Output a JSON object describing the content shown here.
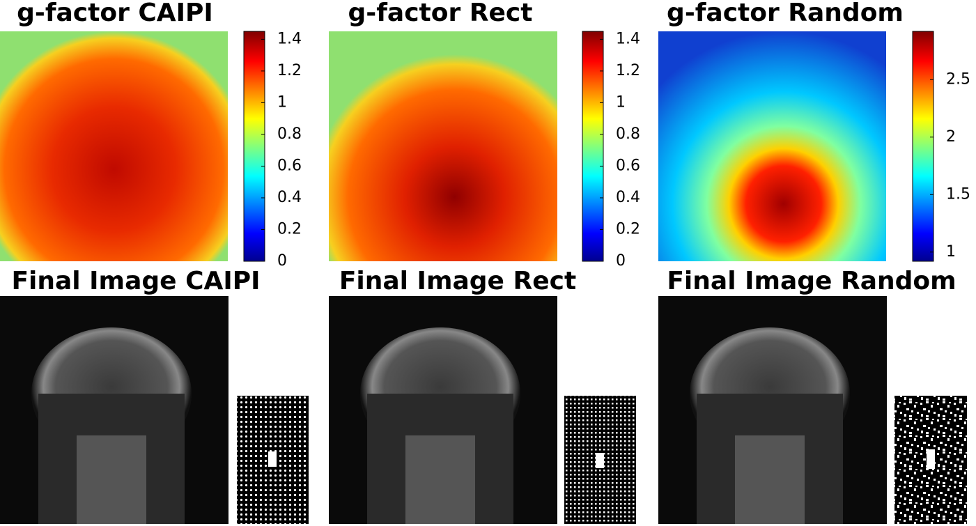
{
  "panels": [
    {
      "title": "g-factor CAIPI",
      "image_title": "Final Image CAIPI",
      "colorbar": {
        "lim": [
          0,
          1.45
        ],
        "ticks": [
          0,
          0.2,
          0.4,
          0.6,
          0.8,
          1,
          1.2,
          1.4
        ]
      }
    },
    {
      "title": "g-factor Rect",
      "image_title": "Final Image Rect",
      "colorbar": {
        "lim": [
          0,
          1.45
        ],
        "ticks": [
          0,
          0.2,
          0.4,
          0.6,
          0.8,
          1,
          1.2,
          1.4
        ]
      }
    },
    {
      "title": "g-factor Random",
      "image_title": "Final Image Random",
      "colorbar": {
        "lim": [
          0.92,
          2.92
        ],
        "ticks": [
          1,
          1.5,
          2,
          2.5
        ]
      }
    }
  ]
}
